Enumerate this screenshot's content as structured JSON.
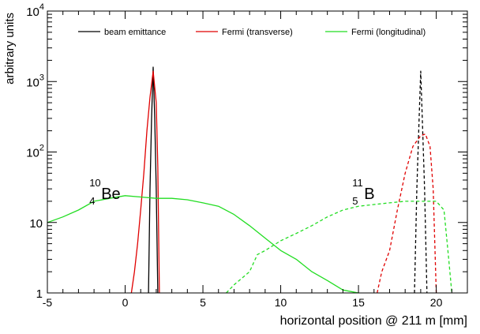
{
  "chart_data": {
    "type": "line",
    "xlabel": "horizontal position @ 211 m [mm]",
    "ylabel": "arbitrary units",
    "xlim": [
      -5,
      22
    ],
    "ylim": [
      1,
      10000
    ],
    "yscale": "log",
    "grid": false,
    "legend_position": "top",
    "x_ticks": [
      "-5",
      "0",
      "5",
      "10",
      "15",
      "20"
    ],
    "x_tick_values": [
      -5,
      0,
      5,
      10,
      15,
      20
    ],
    "y_ticks": [
      {
        "value": 1,
        "base": "1",
        "exp": ""
      },
      {
        "value": 10,
        "base": "10",
        "exp": ""
      },
      {
        "value": 100,
        "base": "10",
        "exp": "2"
      },
      {
        "value": 1000,
        "base": "10",
        "exp": "3"
      },
      {
        "value": 10000,
        "base": "10",
        "exp": "4"
      }
    ],
    "annotations": [
      {
        "mass": "10",
        "charge": "4",
        "element": "Be",
        "x": -2.3,
        "y": 30
      },
      {
        "mass": "11",
        "charge": "5",
        "element": "B",
        "x": 14.6,
        "y": 30
      }
    ],
    "series": [
      {
        "name": "beam emittance",
        "color": "#000000",
        "style": "solid",
        "points": [
          [
            1.5,
            1
          ],
          [
            1.6,
            30
          ],
          [
            1.7,
            300
          ],
          [
            1.8,
            1600
          ],
          [
            1.9,
            300
          ],
          [
            2.0,
            30
          ],
          [
            2.1,
            1
          ]
        ]
      },
      {
        "name": "beam emittance",
        "color": "#000000",
        "style": "dashed",
        "points": [
          [
            18.6,
            1
          ],
          [
            18.75,
            30
          ],
          [
            18.9,
            300
          ],
          [
            19.0,
            1400
          ],
          [
            19.1,
            300
          ],
          [
            19.25,
            30
          ],
          [
            19.4,
            1
          ]
        ]
      },
      {
        "name": "Fermi (transverse)",
        "color": "#e00000",
        "style": "solid",
        "points": [
          [
            0.4,
            1
          ],
          [
            0.6,
            2
          ],
          [
            0.8,
            5
          ],
          [
            1.0,
            15
          ],
          [
            1.2,
            50
          ],
          [
            1.4,
            200
          ],
          [
            1.6,
            600
          ],
          [
            1.8,
            1400
          ],
          [
            2.0,
            500
          ],
          [
            2.1,
            60
          ],
          [
            2.2,
            1
          ]
        ]
      },
      {
        "name": "Fermi (transverse)",
        "color": "#e00000",
        "style": "dashed",
        "points": [
          [
            16.2,
            1
          ],
          [
            16.5,
            2
          ],
          [
            17.0,
            4
          ],
          [
            17.5,
            15
          ],
          [
            18.0,
            50
          ],
          [
            18.5,
            120
          ],
          [
            19.0,
            170
          ],
          [
            19.3,
            180
          ],
          [
            19.6,
            120
          ],
          [
            19.8,
            30
          ],
          [
            20.0,
            1
          ]
        ]
      },
      {
        "name": "Fermi (longitudinal)",
        "color": "#22dd22",
        "style": "solid",
        "points": [
          [
            -5,
            10
          ],
          [
            -4,
            12
          ],
          [
            -3,
            15
          ],
          [
            -2,
            20
          ],
          [
            -1,
            22
          ],
          [
            0,
            24
          ],
          [
            1,
            23
          ],
          [
            2,
            22
          ],
          [
            3,
            22
          ],
          [
            4,
            21
          ],
          [
            5,
            19
          ],
          [
            6,
            17
          ],
          [
            7,
            13
          ],
          [
            8,
            9
          ],
          [
            9,
            6
          ],
          [
            10,
            4
          ],
          [
            11,
            3
          ],
          [
            12,
            2
          ],
          [
            13,
            1.5
          ],
          [
            14,
            1.1
          ],
          [
            15,
            1
          ]
        ]
      },
      {
        "name": "Fermi (longitudinal)",
        "color": "#22dd22",
        "style": "dashed",
        "points": [
          [
            6.5,
            1
          ],
          [
            7.0,
            1.3
          ],
          [
            8.0,
            2
          ],
          [
            8.5,
            3.5
          ],
          [
            9.0,
            4
          ],
          [
            10.0,
            5.5
          ],
          [
            11.0,
            7
          ],
          [
            12.0,
            9
          ],
          [
            13.0,
            12
          ],
          [
            14.0,
            15
          ],
          [
            15.0,
            17
          ],
          [
            16.0,
            18
          ],
          [
            17.0,
            19
          ],
          [
            18.0,
            20
          ],
          [
            19.0,
            20
          ],
          [
            20.0,
            20
          ],
          [
            20.5,
            15
          ],
          [
            20.8,
            3
          ],
          [
            21.0,
            1
          ]
        ]
      }
    ],
    "legend": [
      {
        "label": "beam emittance",
        "color": "#000000"
      },
      {
        "label": "Fermi (transverse)",
        "color": "#e00000"
      },
      {
        "label": "Fermi (longitudinal)",
        "color": "#22dd22"
      }
    ]
  }
}
